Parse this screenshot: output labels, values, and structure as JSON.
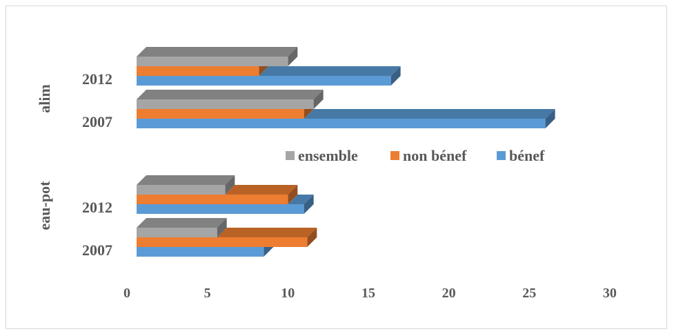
{
  "chart_data": {
    "type": "bar",
    "orientation": "horizontal",
    "style": "3d",
    "groups": [
      {
        "name": "alim",
        "categories": [
          "2012",
          "2007"
        ]
      },
      {
        "name": "eau-pot",
        "categories": [
          "2012",
          "2007"
        ]
      }
    ],
    "series": [
      {
        "name": "ensemble",
        "color": "#a5a5a5",
        "values": {
          "alim": {
            "2012": 9.4,
            "2007": 11
          },
          "eau-pot": {
            "2012": 5.5,
            "2007": 5
          }
        }
      },
      {
        "name": "non bénef",
        "color": "#ed7d31",
        "values": {
          "alim": {
            "2012": 7.6,
            "2007": 10.4
          },
          "eau-pot": {
            "2012": 9.4,
            "2007": 10.6
          }
        }
      },
      {
        "name": "bénef",
        "color": "#5b9bd5",
        "values": {
          "alim": {
            "2012": 15.8,
            "2007": 25.4
          },
          "eau-pot": {
            "2012": 10.4,
            "2007": 7.9
          }
        }
      }
    ],
    "xlim": [
      0,
      30
    ],
    "xticks": [
      "0",
      "5",
      "10",
      "15",
      "20",
      "25",
      "30"
    ],
    "grid": false,
    "legend_position": "center"
  }
}
